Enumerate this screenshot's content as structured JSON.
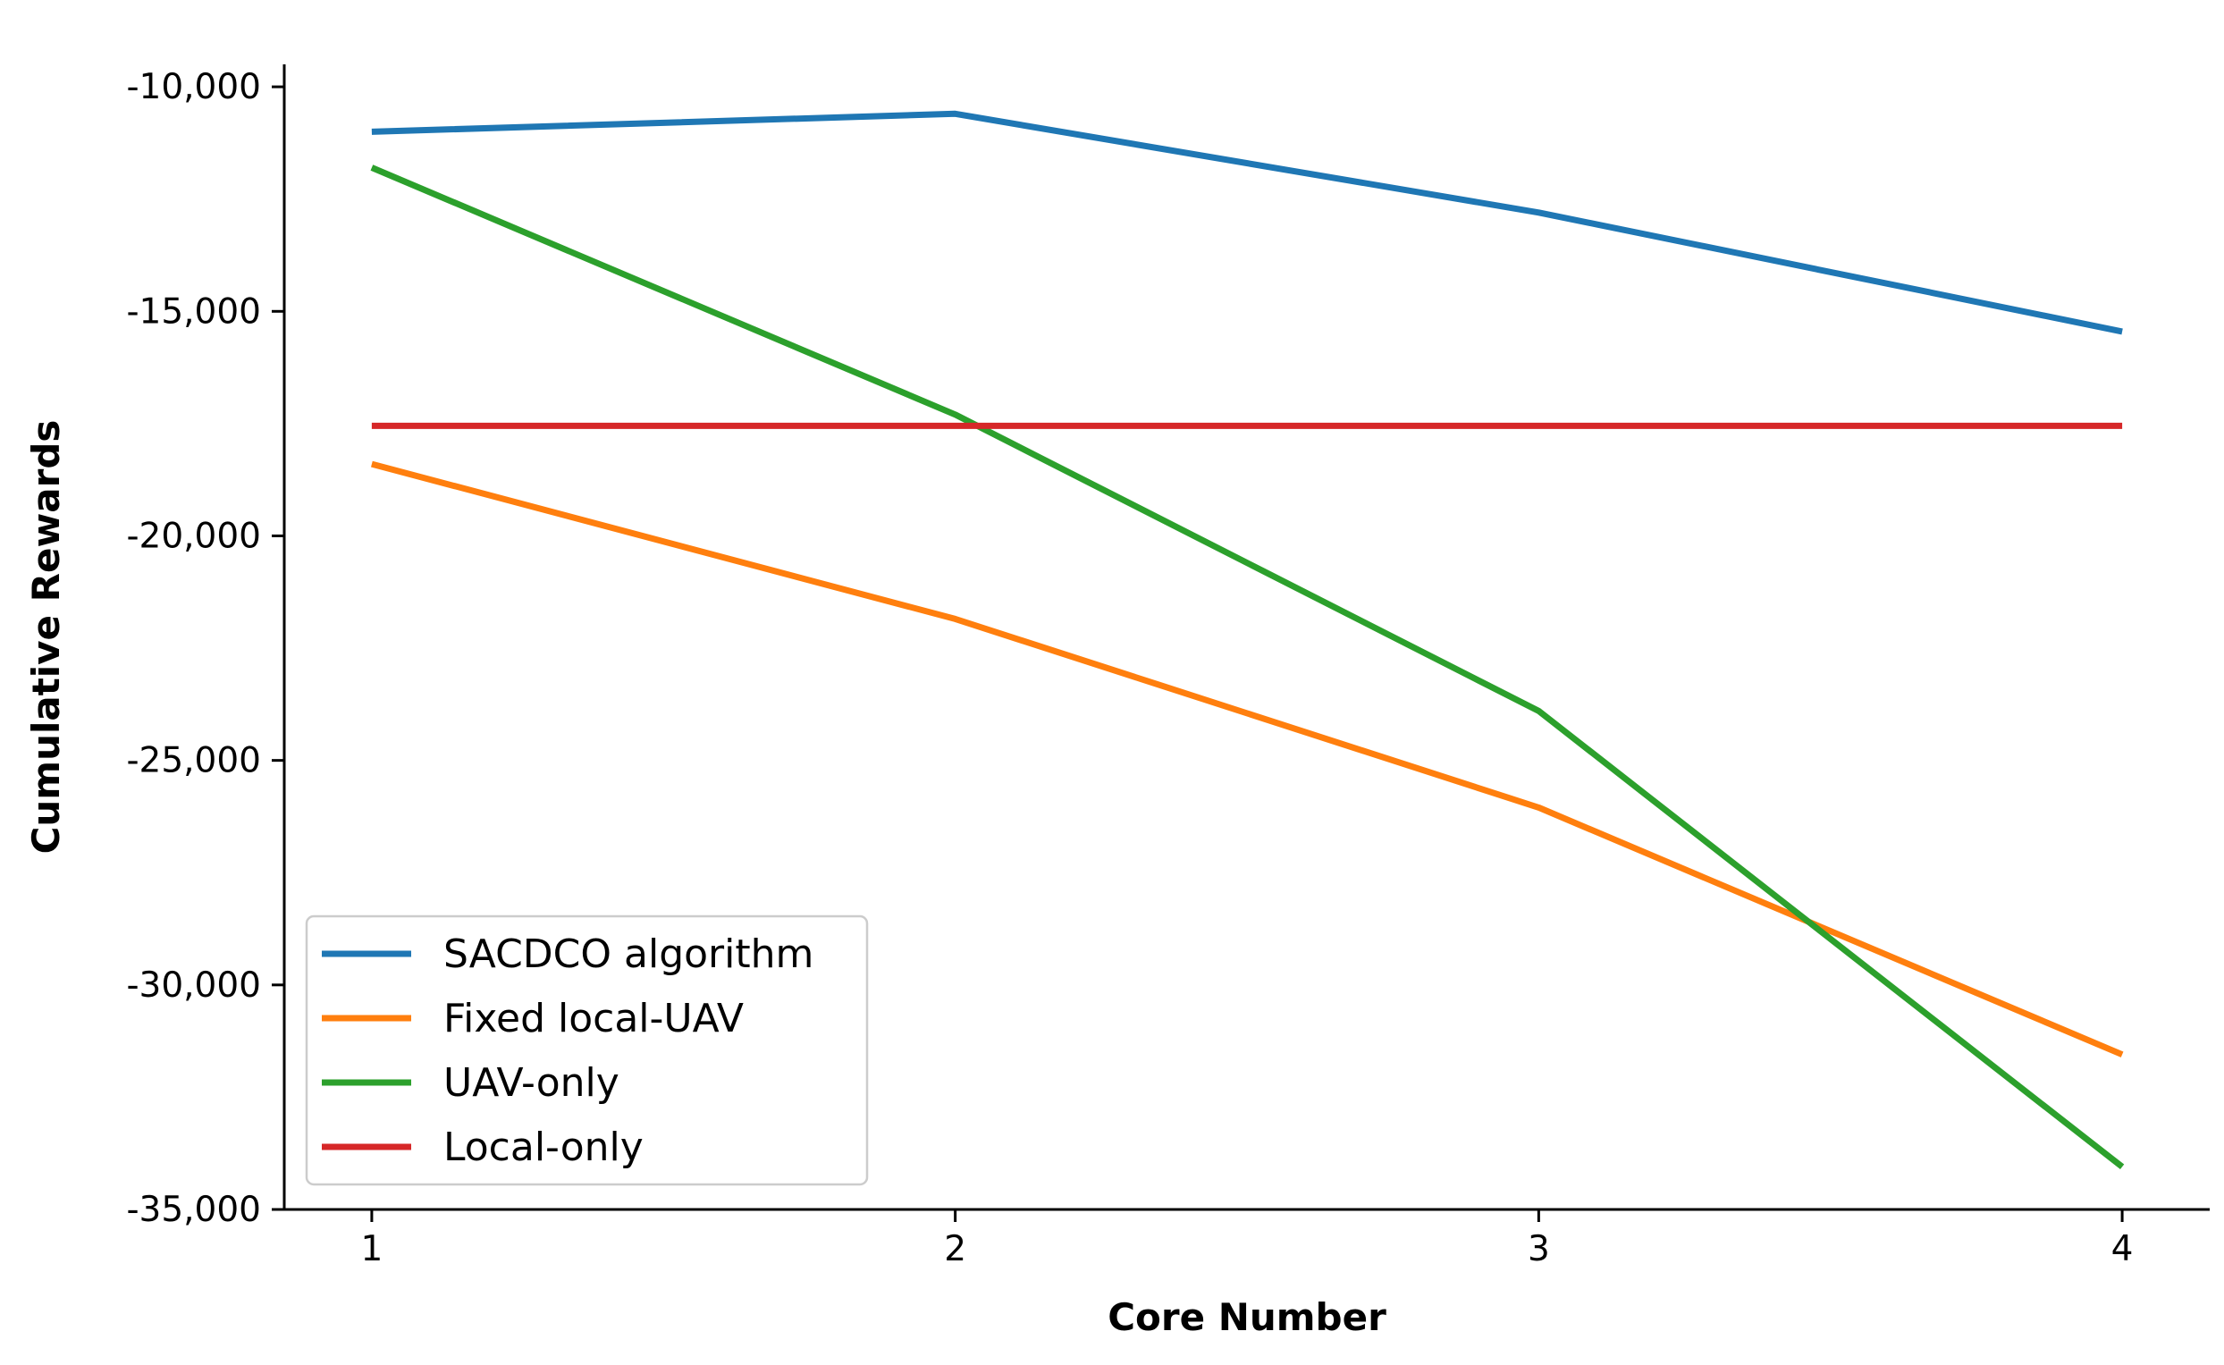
{
  "chart_data": {
    "type": "line",
    "title": "",
    "xlabel": "Core Number",
    "ylabel": "Cumulative Rewards",
    "x": [
      1,
      2,
      3,
      4
    ],
    "x_tick_labels": [
      "1",
      "2",
      "3",
      "4"
    ],
    "xlim": [
      0.85,
      4.15
    ],
    "ylim": [
      -35000,
      -9500
    ],
    "y_ticks": [
      -10000,
      -15000,
      -20000,
      -25000,
      -30000,
      -35000
    ],
    "y_tick_labels": [
      "-10,000",
      "-15,000",
      "-20,000",
      "-25,000",
      "-30,000",
      "-35,000"
    ],
    "grid": false,
    "legend_position": "lower-left",
    "series": [
      {
        "name": "SACDCO algorithm",
        "color": "#1f77b4",
        "values": [
          -11000,
          -10600,
          -12800,
          -15450
        ]
      },
      {
        "name": "Fixed local-UAV",
        "color": "#ff7f0e",
        "values": [
          -18400,
          -21850,
          -26050,
          -31550
        ]
      },
      {
        "name": "UAV-only",
        "color": "#2ca02c",
        "values": [
          -11800,
          -17300,
          -23900,
          -34050
        ]
      },
      {
        "name": "Local-only",
        "color": "#d62728",
        "values": [
          -17550,
          -17550,
          -17550,
          -17550
        ]
      }
    ]
  }
}
